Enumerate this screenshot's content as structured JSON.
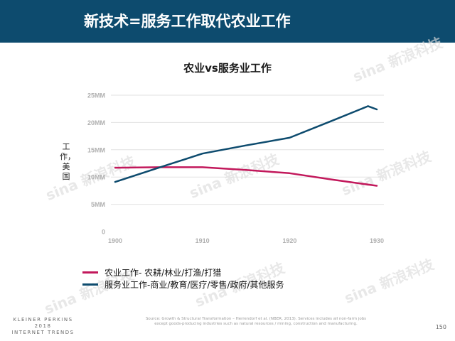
{
  "header": {
    "title": "新技术=服务工作取代农业工作"
  },
  "watermark": {
    "text": "sina 新浪科技"
  },
  "footer": {
    "source_line1": "Source: Growth & Structural Transformation – Herrendorf et al. (NBER, 2013). Services includes all non-farm jobs",
    "source_line2": "except goods-producing industries such as natural resources / mining, construction and manufacturing.",
    "brand_line1": "KLEINER PERKINS",
    "brand_line2": "2018",
    "brand_line3": "INTERNET TRENDS",
    "page_number": "150"
  },
  "colors": {
    "header_bg": "#0d4b6e",
    "agriculture": "#c2185b",
    "services": "#0d4b6e"
  },
  "chart_data": {
    "type": "line",
    "title": "农业vs服务业工作",
    "ylabel": "工作，美国",
    "xlabel": "",
    "x_ticks": [
      "1900",
      "1910",
      "1920",
      "1930"
    ],
    "xlim": [
      1900,
      1930
    ],
    "y_ticks": [
      "0",
      "5MM",
      "10MM",
      "15MM",
      "20MM",
      "25MM"
    ],
    "ylim": [
      0,
      25
    ],
    "grid": true,
    "legend_position": "bottom-left",
    "series": [
      {
        "name": "农业工作- 农耕/林业/打渔/打猎",
        "color": "#c2185b",
        "x": [
          1900,
          1905,
          1910,
          1915,
          1920,
          1925,
          1930
        ],
        "values": [
          11.7,
          11.8,
          11.8,
          11.3,
          10.7,
          9.5,
          8.4
        ]
      },
      {
        "name": "服务业工作-商业/教育/医疗/零售/政府/其他服务",
        "color": "#0d4b6e",
        "x": [
          1900,
          1905,
          1910,
          1915,
          1920,
          1925,
          1929,
          1930
        ],
        "values": [
          9.1,
          11.7,
          14.3,
          15.8,
          17.2,
          20.4,
          23.0,
          22.4
        ]
      }
    ]
  }
}
